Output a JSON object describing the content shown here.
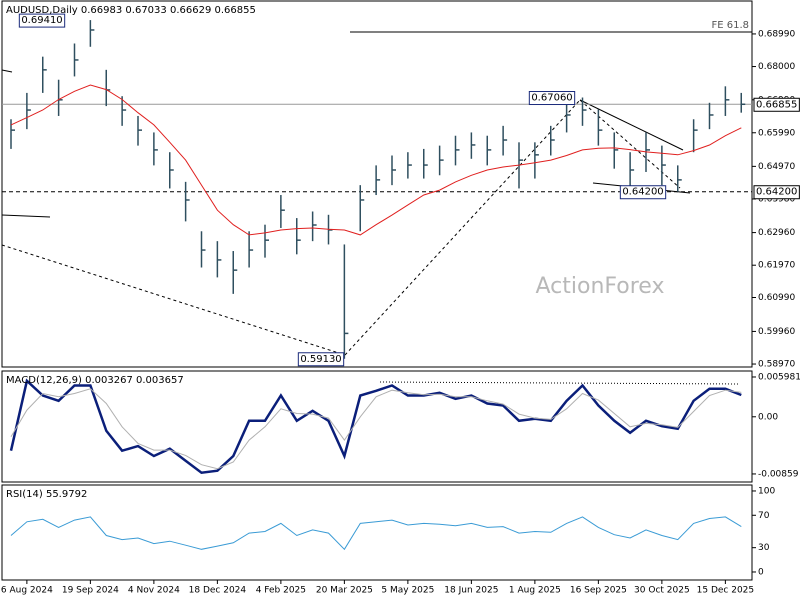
{
  "chart_data": [
    {
      "type": "hlc",
      "title": "AUDUSD,Daily  0.66983 0.67033 0.66629 0.66855",
      "color": "#2f4f5f",
      "high": [
        0.664,
        0.672,
        0.683,
        0.676,
        0.687,
        0.6941,
        0.679,
        0.671,
        0.665,
        0.66,
        0.654,
        0.645,
        0.63,
        0.627,
        0.624,
        0.63,
        0.632,
        0.641,
        0.634,
        0.636,
        0.635,
        0.626,
        0.644,
        0.65,
        0.653,
        0.654,
        0.655,
        0.656,
        0.659,
        0.66,
        0.659,
        0.662,
        0.657,
        0.657,
        0.662,
        0.669,
        0.6706,
        0.667,
        0.66,
        0.654,
        0.66,
        0.656,
        0.65,
        0.664,
        0.669,
        0.674,
        0.672
      ],
      "low": [
        0.655,
        0.661,
        0.672,
        0.665,
        0.677,
        0.686,
        0.668,
        0.662,
        0.656,
        0.65,
        0.643,
        0.633,
        0.619,
        0.616,
        0.611,
        0.619,
        0.622,
        0.631,
        0.623,
        0.627,
        0.626,
        0.5913,
        0.63,
        0.641,
        0.644,
        0.646,
        0.646,
        0.647,
        0.65,
        0.652,
        0.65,
        0.653,
        0.643,
        0.646,
        0.653,
        0.66,
        0.662,
        0.656,
        0.649,
        0.643,
        0.648,
        0.644,
        0.642,
        0.654,
        0.661,
        0.665,
        0.666
      ],
      "close": [
        0.6607,
        0.6668,
        0.679,
        0.6699,
        0.682,
        0.6911,
        0.6729,
        0.6668,
        0.6607,
        0.6547,
        0.6486,
        0.6395,
        0.6243,
        0.6213,
        0.6182,
        0.6243,
        0.6273,
        0.6364,
        0.6273,
        0.6319,
        0.6304,
        0.599,
        0.6395,
        0.6456,
        0.6486,
        0.6501,
        0.6501,
        0.6516,
        0.6547,
        0.6562,
        0.6547,
        0.6577,
        0.6516,
        0.6532,
        0.6577,
        0.6653,
        0.6668,
        0.6607,
        0.6547,
        0.6486,
        0.6547,
        0.6501,
        0.6456,
        0.6607,
        0.6653,
        0.6699,
        0.66855
      ],
      "overlays": [
        {
          "color": "#e0201f",
          "values": [
            0.6623,
            0.6645,
            0.6668,
            0.67,
            0.6725,
            0.6744,
            0.673,
            0.67,
            0.666,
            0.6623,
            0.657,
            0.6516,
            0.644,
            0.6364,
            0.632,
            0.6289,
            0.6295,
            0.6304,
            0.6308,
            0.631,
            0.6306,
            0.6304,
            0.6289,
            0.632,
            0.6349,
            0.638,
            0.641,
            0.6425,
            0.645,
            0.647,
            0.6486,
            0.6495,
            0.6501,
            0.6508,
            0.6516,
            0.653,
            0.6547,
            0.6552,
            0.6553,
            0.6548,
            0.6541,
            0.6537,
            0.6532,
            0.6545,
            0.6562,
            0.659,
            0.6614
          ]
        }
      ],
      "ylim": [
        0.5888,
        0.7002
      ],
      "yticks": [
        {
          "value": 0.6899,
          "label": "0.68990"
        },
        {
          "value": 0.68,
          "label": "0.68000"
        },
        {
          "value": 0.6699,
          "label": "0.66990"
        },
        {
          "value": 0.6599,
          "label": "0.65990"
        },
        {
          "value": 0.6497,
          "label": "0.64970"
        },
        {
          "value": 0.6398,
          "label": "0.63980"
        },
        {
          "value": 0.6296,
          "label": "0.62960"
        },
        {
          "value": 0.6197,
          "label": "0.61970"
        },
        {
          "value": 0.6099,
          "label": "0.60990"
        },
        {
          "value": 0.5996,
          "label": "0.59960"
        },
        {
          "value": 0.5897,
          "label": "0.58970"
        }
      ],
      "levels": [
        {
          "value": 0.66855,
          "label": "0.66855",
          "style": "solid"
        },
        {
          "value": 0.642,
          "label": "0.64200",
          "style": "dashed"
        }
      ],
      "fe_line": {
        "value": 0.6905,
        "label": "FE 61.8"
      },
      "annotations": [
        {
          "value": 0.6941,
          "label": "0.69410"
        },
        {
          "value": 0.6706,
          "label": "0.67060"
        },
        {
          "value": 0.5913,
          "label": "0.59130"
        },
        {
          "value": 0.642,
          "label": "0.64200"
        }
      ],
      "watermark": "ActionForex"
    },
    {
      "type": "line",
      "title": "MACD(12,26,9) 0.003267 0.003657",
      "series": [
        {
          "color": "#0b1f7a",
          "values": [
            -0.0051,
            0.0054,
            0.0032,
            0.0024,
            0.0047,
            0.0047,
            -0.0021,
            -0.0051,
            -0.0044,
            -0.0059,
            -0.0048,
            -0.0066,
            -0.0084,
            -0.0081,
            -0.0059,
            -0.0006,
            -0.0006,
            0.0032,
            -0.0006,
            0.0009,
            -0.0006,
            -0.0059,
            0.0032,
            0.0039,
            0.0047,
            0.0032,
            0.0032,
            0.0036,
            0.0027,
            0.0032,
            0.002,
            0.0017,
            -0.0006,
            -0.0003,
            -0.0006,
            0.0024,
            0.0047,
            0.0017,
            -0.0006,
            -0.0024,
            -0.0006,
            -0.0014,
            -0.0018,
            0.0024,
            0.0042,
            0.0042,
            0.003267
          ]
        },
        {
          "color": "#b0b0b0",
          "values": [
            -0.003,
            0.001,
            0.0035,
            0.003,
            0.0035,
            0.0042,
            0.002,
            -0.0015,
            -0.004,
            -0.005,
            -0.005,
            -0.0058,
            -0.0072,
            -0.0078,
            -0.0068,
            -0.0035,
            -0.0015,
            0.0012,
            0.0005,
            0.0004,
            -0.0002,
            -0.0035,
            0.0,
            0.003,
            0.004,
            0.0036,
            0.0033,
            0.0034,
            0.003,
            0.003,
            0.0024,
            0.0019,
            0.0004,
            -0.0002,
            -0.0004,
            0.0012,
            0.0035,
            0.0025,
            0.0005,
            -0.0015,
            -0.001,
            -0.0012,
            -0.0016,
            0.0008,
            0.0032,
            0.004,
            0.003657
          ]
        }
      ],
      "ylim": [
        -0.0098,
        0.00703
      ],
      "yticks": [
        0.005981,
        {
          "value": 0,
          "label": "0.00"
        },
        -0.00859
      ]
    },
    {
      "type": "line",
      "title": "RSI(14) 55.9792",
      "series": [
        {
          "color": "#3a9bd5",
          "values": [
            45,
            62,
            65,
            55,
            64,
            68,
            45,
            40,
            42,
            35,
            38,
            33,
            28,
            32,
            36,
            48,
            50,
            60,
            45,
            52,
            48,
            28,
            60,
            62,
            64,
            58,
            60,
            59,
            57,
            60,
            55,
            56,
            48,
            50,
            49,
            60,
            68,
            55,
            46,
            42,
            52,
            45,
            40,
            60,
            66,
            68,
            55.9792
          ]
        }
      ],
      "ylim": [
        -9.9,
        108.6
      ],
      "yticks": [
        0,
        30,
        70,
        100
      ],
      "categories": [
        null,
        "6 Aug 2024",
        null,
        null,
        null,
        "19 Sep 2024",
        null,
        null,
        null,
        "4 Nov 2024",
        null,
        null,
        null,
        "18 Dec 2024",
        null,
        null,
        null,
        "4 Feb 2025",
        null,
        null,
        null,
        "20 Mar 2025",
        null,
        null,
        null,
        "5 May 2025",
        null,
        null,
        null,
        "18 Jun 2025",
        null,
        null,
        null,
        "1 Aug 2025",
        null,
        null,
        null,
        "16 Sep 2025",
        null,
        null,
        null,
        "30 Oct 2025",
        null,
        null,
        null,
        "15 Dec 2025",
        null
      ]
    }
  ]
}
